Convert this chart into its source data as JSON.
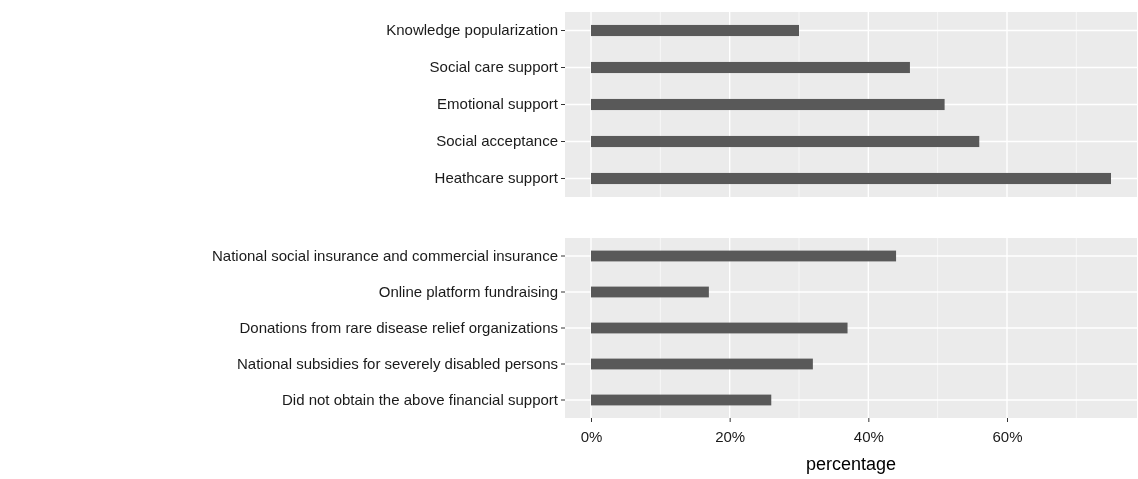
{
  "chart_data": [
    {
      "type": "bar",
      "orientation": "horizontal",
      "categories": [
        "Knowledge popularization",
        "Social care support",
        "Emotional support",
        "Social acceptance",
        "Heathcare support"
      ],
      "values": [
        30,
        46,
        51,
        56,
        75
      ],
      "color": "#595959",
      "xlim": [
        -3.75,
        78.75
      ],
      "xticks": [
        {
          "value": 0,
          "label": null
        },
        {
          "value": 20,
          "label": null
        },
        {
          "value": 40,
          "label": null
        },
        {
          "value": 60,
          "label": null
        }
      ],
      "grid": true,
      "tick_labels": "y"
    },
    {
      "type": "bar",
      "orientation": "horizontal",
      "categories": [
        "National social insurance and commercial insurance",
        "Online platform fundraising",
        "Donations from rare disease relief organizations",
        "National subsidies for severely disabled persons",
        "Did not obtain the above financial support"
      ],
      "values": [
        44,
        17,
        37,
        32,
        26
      ],
      "color": "#595959",
      "xlim": [
        -3.75,
        78.75
      ],
      "xticks": [
        {
          "value": 0,
          "label": "0%"
        },
        {
          "value": 20,
          "label": "20%"
        },
        {
          "value": 40,
          "label": "40%"
        },
        {
          "value": 60,
          "label": "60%"
        }
      ],
      "xlabel": "percentage",
      "grid": true
    }
  ]
}
